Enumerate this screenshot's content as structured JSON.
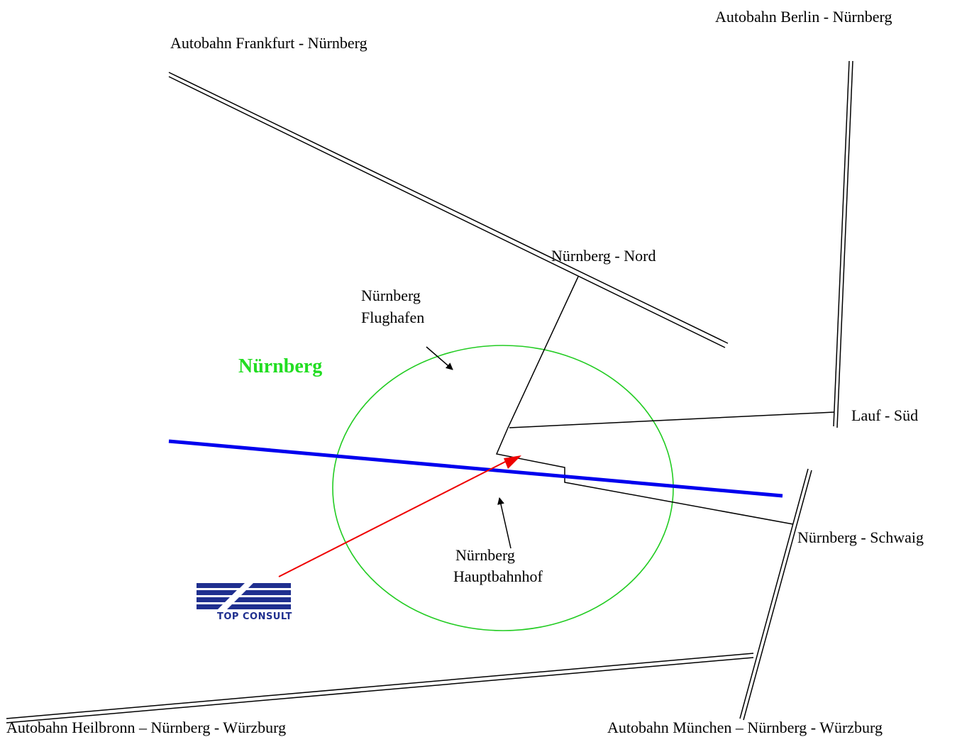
{
  "labels": {
    "autobahn_frankfurt": "Autobahn Frankfurt - Nürnberg",
    "autobahn_berlin": "Autobahn Berlin - Nürnberg",
    "autobahn_heilbronn": "Autobahn Heilbronn – Nürnberg - Würzburg",
    "autobahn_muenchen": "Autobahn München – Nürnberg - Würzburg",
    "nuernberg_nord": "Nürnberg - Nord",
    "lauf_sued": "Lauf - Süd",
    "nuernberg_schwaig": "Nürnberg - Schwaig",
    "flughafen_line1": "Nürnberg",
    "flughafen_line2": "Flughafen",
    "hauptbahnhof_line1": "Nürnberg",
    "hauptbahnhof_line2": "Hauptbahnhof",
    "city": "Nürnberg"
  },
  "logo": {
    "text": "TOP CONSULT"
  },
  "colors": {
    "city_label": "#22dd22",
    "city_circle": "#22cc22",
    "rail_line": "#0000ee",
    "route_arrow": "#ee0000",
    "roads": "#000000",
    "logo": "#1f2f8f"
  }
}
